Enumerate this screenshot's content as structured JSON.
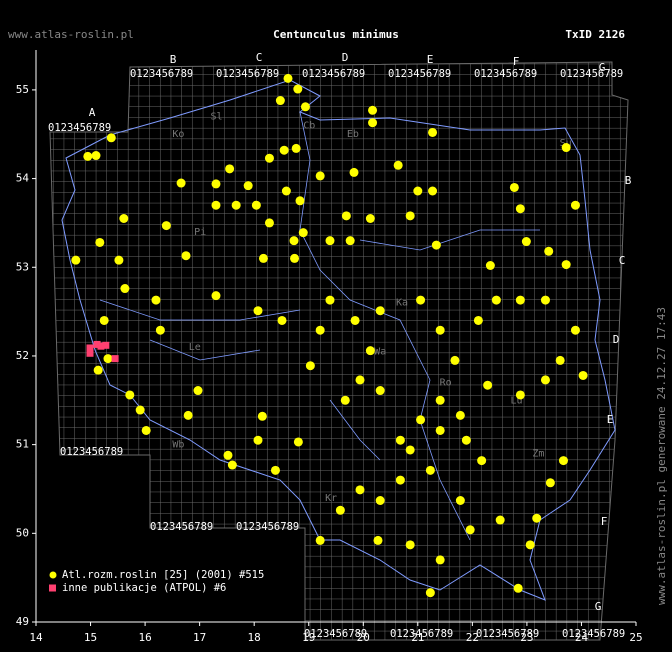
{
  "chart_data": {
    "type": "scatter",
    "title": "Centunculus minimus",
    "header_left": "www.atlas-roslin.pl",
    "header_right": "TxID 2126",
    "side_note": "www.atlas-roslin.pl generowane 24.12.27 17:43",
    "xlim": [
      14,
      25
    ],
    "ylim": [
      49,
      55.45
    ],
    "xticks": [
      14,
      15,
      16,
      17,
      18,
      19,
      20,
      21,
      22,
      23,
      24,
      25
    ],
    "yticks": [
      49,
      50,
      51,
      52,
      53,
      54,
      55
    ],
    "grid_labels": {
      "top": [
        "A",
        "B",
        "C",
        "D",
        "E",
        "F",
        "G"
      ],
      "right": [
        "B",
        "C",
        "D",
        "E",
        "F",
        "G"
      ],
      "digits": "0123456789"
    },
    "region_labels": [
      {
        "text": "Sl",
        "x": 17.2,
        "y": 54.7
      },
      {
        "text": "Cb",
        "x": 18.9,
        "y": 54.6
      },
      {
        "text": "Eb",
        "x": 19.7,
        "y": 54.5
      },
      {
        "text": "Ko",
        "x": 16.5,
        "y": 54.5
      },
      {
        "text": "Su",
        "x": 23.6,
        "y": 54.4
      },
      {
        "text": "Pi",
        "x": 16.9,
        "y": 53.4
      },
      {
        "text": "Ka",
        "x": 20.6,
        "y": 52.6
      },
      {
        "text": "Le",
        "x": 16.8,
        "y": 52.1
      },
      {
        "text": "Wa",
        "x": 20.2,
        "y": 52.05
      },
      {
        "text": "Ro",
        "x": 21.4,
        "y": 51.7
      },
      {
        "text": "Lu",
        "x": 22.7,
        "y": 51.5
      },
      {
        "text": "Zm",
        "x": 23.1,
        "y": 50.9
      },
      {
        "text": "Wb",
        "x": 16.5,
        "y": 51.0
      },
      {
        "text": "Kr",
        "x": 19.3,
        "y": 50.4
      }
    ],
    "series": [
      {
        "name": "Atl.rozm.roslin [25] (2001) #515",
        "color": "#ffff00",
        "marker": "circle",
        "x": [
          14.95,
          15.1,
          15.38,
          18.62,
          18.8,
          18.48,
          18.94,
          20.17,
          20.17,
          21.27,
          18.55,
          18.77,
          18.28,
          17.55,
          17.89,
          17.3,
          16.66,
          17.3,
          17.67,
          18.04,
          18.59,
          18.84,
          19.21,
          19.83,
          20.64,
          21.0,
          21.27,
          20.86,
          21.34,
          20.13,
          19.69,
          19.39,
          18.73,
          18.28,
          18.17,
          18.74,
          18.9,
          19.76,
          22.77,
          22.88,
          23.72,
          23.89,
          22.99,
          23.4,
          23.72,
          22.33,
          22.44,
          22.11,
          22.88,
          23.34,
          23.89,
          23.61,
          24.03,
          23.34,
          22.88,
          22.28,
          21.68,
          21.41,
          21.05,
          20.31,
          19.85,
          20.13,
          19.94,
          19.67,
          19.21,
          19.03,
          20.31,
          21.05,
          21.41,
          21.78,
          20.86,
          21.23,
          20.68,
          20.31,
          19.94,
          19.58,
          19.21,
          21.78,
          21.96,
          22.51,
          23.06,
          22.84,
          21.23,
          21.41,
          20.86,
          20.27,
          18.39,
          18.07,
          17.52,
          17.6,
          16.97,
          16.79,
          16.02,
          15.91,
          15.72,
          15.32,
          15.14,
          15.25,
          16.28,
          16.2,
          15.63,
          15.52,
          14.73,
          15.17,
          15.61,
          16.39,
          16.75,
          17.3,
          18.07,
          18.51,
          18.81,
          18.15,
          19.39,
          23.43,
          23.67,
          23.18,
          21.89,
          22.17,
          20.68,
          21.41
        ],
        "y": [
          54.25,
          54.26,
          54.46,
          55.13,
          55.01,
          54.88,
          54.81,
          54.77,
          54.63,
          54.52,
          54.32,
          54.34,
          54.23,
          54.11,
          53.92,
          53.94,
          53.95,
          53.7,
          53.7,
          53.7,
          53.86,
          53.75,
          54.03,
          54.07,
          54.15,
          53.86,
          53.86,
          53.58,
          53.25,
          53.55,
          53.58,
          53.3,
          53.3,
          53.5,
          53.1,
          53.1,
          53.39,
          53.3,
          53.9,
          53.66,
          54.35,
          53.7,
          53.29,
          53.18,
          53.03,
          53.02,
          52.63,
          52.4,
          52.63,
          52.63,
          52.29,
          51.95,
          51.78,
          51.73,
          51.56,
          51.67,
          51.95,
          52.29,
          52.63,
          52.51,
          52.4,
          52.06,
          51.73,
          51.5,
          52.29,
          51.89,
          51.61,
          51.28,
          51.16,
          51.33,
          50.94,
          50.71,
          50.6,
          50.37,
          50.49,
          50.26,
          49.92,
          50.37,
          50.04,
          50.15,
          49.87,
          49.38,
          49.33,
          49.7,
          49.87,
          49.92,
          50.71,
          51.05,
          50.88,
          50.77,
          51.61,
          51.33,
          51.16,
          51.39,
          51.56,
          51.97,
          51.84,
          52.4,
          52.29,
          52.63,
          52.76,
          53.08,
          53.08,
          53.28,
          53.55,
          53.47,
          53.13,
          52.68,
          52.51,
          52.4,
          51.03,
          51.32,
          52.63,
          50.57,
          50.82,
          50.17,
          51.05,
          50.82,
          51.05,
          51.5
        ]
      },
      {
        "name": "inne publikacje (ATPOL) #6",
        "color": "#ff4070",
        "marker": "square",
        "x": [
          14.99,
          14.99,
          15.12,
          15.28,
          15.45,
          15.19
        ],
        "y": [
          52.09,
          52.03,
          52.13,
          52.12,
          51.97,
          52.11
        ]
      }
    ]
  }
}
